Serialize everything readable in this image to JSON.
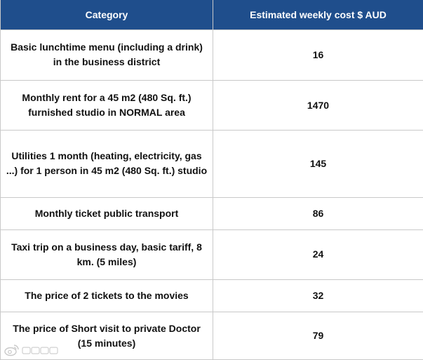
{
  "table": {
    "headers": {
      "category": "Category",
      "cost": "Estimated weekly cost $ AUD"
    },
    "rows": [
      {
        "category": "Basic lunchtime menu (including a drink) in the business district",
        "cost": "16"
      },
      {
        "category": "Monthly rent for a 45 m2 (480 Sq. ft.) furnished studio in NORMAL area",
        "cost": "1470"
      },
      {
        "category": "Utilities 1 month (heating, electricity, gas ...) for 1 person in 45 m2 (480 Sq. ft.) studio",
        "cost": "145"
      },
      {
        "category": "Monthly ticket public transport",
        "cost": "86"
      },
      {
        "category": "Taxi trip on a business day, basic tariff, 8 km. (5 miles)",
        "cost": "24"
      },
      {
        "category": "The price of 2 tickets to the movies",
        "cost": "32"
      },
      {
        "category": "The price of Short visit to private Doctor (15 minutes)",
        "cost": "79"
      }
    ]
  },
  "colors": {
    "header_background": "#1f4e8c",
    "header_text": "#ffffff",
    "border": "#c9c9c9"
  },
  "watermark": {
    "icon": "weibo-logo-icon"
  }
}
